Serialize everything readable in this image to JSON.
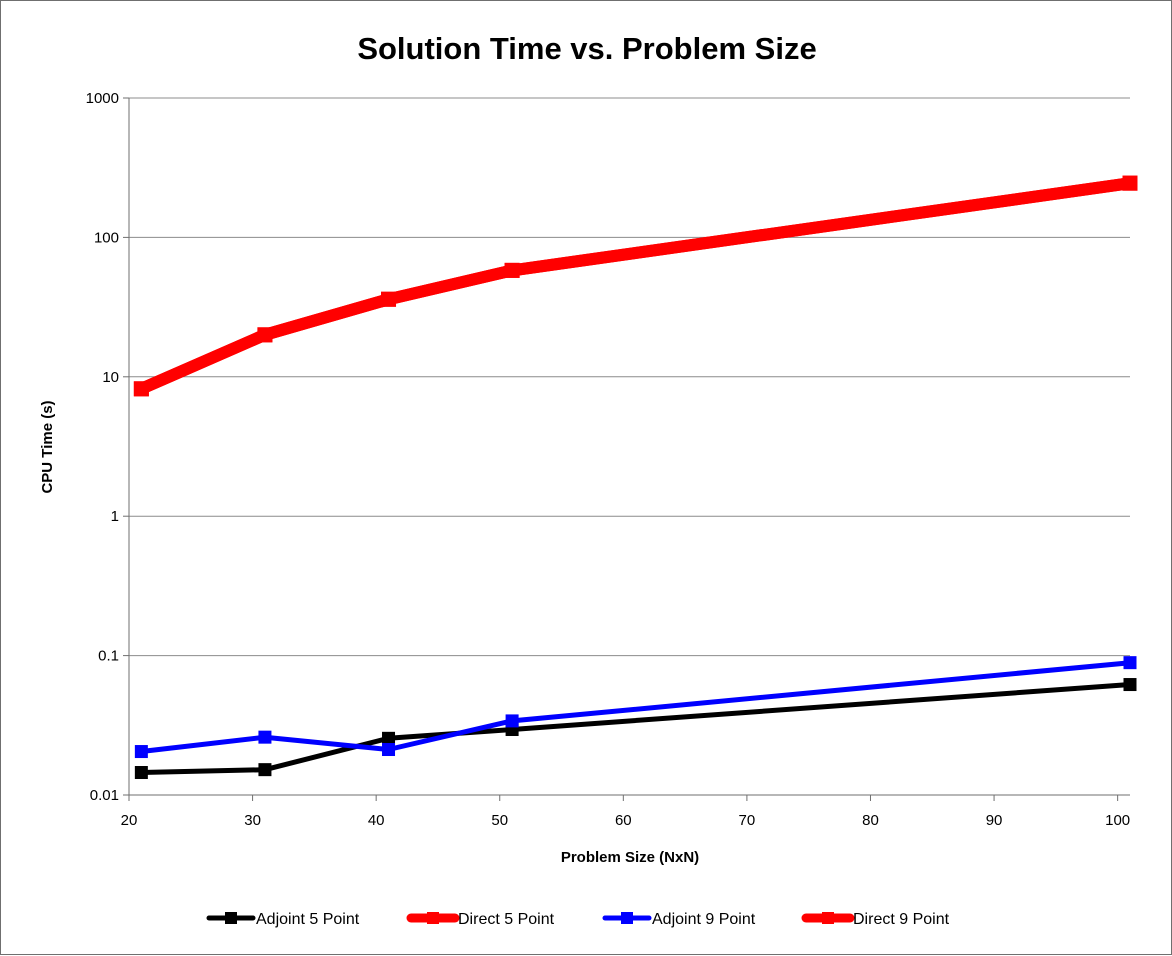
{
  "chart_data": {
    "type": "line",
    "title": "Solution Time vs. Problem Size",
    "xlabel": "Problem Size (NxN)",
    "ylabel": "CPU Time (s)",
    "xlim": [
      20,
      101
    ],
    "ylim": [
      0.01,
      1000
    ],
    "yscale": "log",
    "x_ticks": [
      "20",
      "30",
      "40",
      "50",
      "60",
      "70",
      "80",
      "90",
      "100"
    ],
    "y_ticks": [
      "0.01",
      "0.1",
      "1",
      "10",
      "100",
      "1000"
    ],
    "grid": "horizontal",
    "legend_position": "bottom",
    "x": [
      21,
      31,
      41,
      51,
      101
    ],
    "series": [
      {
        "name": "Adjoint 5 Point",
        "color": "#000000",
        "values": [
          0.0145,
          0.0152,
          0.0255,
          0.0295,
          0.062
        ]
      },
      {
        "name": "Direct 5 Point",
        "color": "#ff0000",
        "values": [
          8.2,
          20.0,
          36.0,
          58.0,
          245.0
        ]
      },
      {
        "name": "Adjoint 9 Point",
        "color": "#0000ff",
        "values": [
          0.0205,
          0.026,
          0.0212,
          0.034,
          0.089
        ]
      },
      {
        "name": "Direct 9 Point",
        "color": "#ff0000",
        "values": [
          8.2,
          20.0,
          36.0,
          58.0,
          245.0
        ]
      }
    ]
  }
}
